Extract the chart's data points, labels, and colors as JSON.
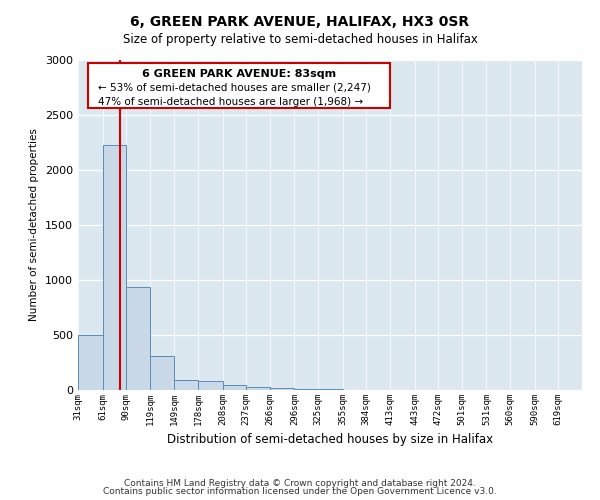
{
  "title": "6, GREEN PARK AVENUE, HALIFAX, HX3 0SR",
  "subtitle": "Size of property relative to semi-detached houses in Halifax",
  "xlabel": "Distribution of semi-detached houses by size in Halifax",
  "ylabel": "Number of semi-detached properties",
  "property_label": "6 GREEN PARK AVENUE: 83sqm",
  "pct_smaller": 53,
  "pct_larger": 47,
  "count_smaller": 2247,
  "count_larger": 1968,
  "bin_labels": [
    "31sqm",
    "61sqm",
    "90sqm",
    "119sqm",
    "149sqm",
    "178sqm",
    "208sqm",
    "237sqm",
    "266sqm",
    "296sqm",
    "325sqm",
    "355sqm",
    "384sqm",
    "413sqm",
    "443sqm",
    "472sqm",
    "501sqm",
    "531sqm",
    "560sqm",
    "590sqm",
    "619sqm"
  ],
  "bin_edges": [
    31,
    61,
    90,
    119,
    149,
    178,
    208,
    237,
    266,
    296,
    325,
    355,
    384,
    413,
    443,
    472,
    501,
    531,
    560,
    590,
    619
  ],
  "bar_heights": [
    500,
    2230,
    940,
    310,
    95,
    80,
    50,
    30,
    20,
    10,
    5,
    3,
    0,
    0,
    0,
    0,
    0,
    0,
    0,
    0
  ],
  "bar_color": "#c9d9e8",
  "bar_edge_color": "#5b8db8",
  "red_line_x": 83,
  "ylim": [
    0,
    3000
  ],
  "yticks": [
    0,
    500,
    1000,
    1500,
    2000,
    2500,
    3000
  ],
  "bg_color": "#dce8f0",
  "fig_bg_color": "#ffffff",
  "annotation_box_facecolor": "#ffffff",
  "annotation_box_edgecolor": "#cc0000",
  "footer_line1": "Contains HM Land Registry data © Crown copyright and database right 2024.",
  "footer_line2": "Contains public sector information licensed under the Open Government Licence v3.0."
}
